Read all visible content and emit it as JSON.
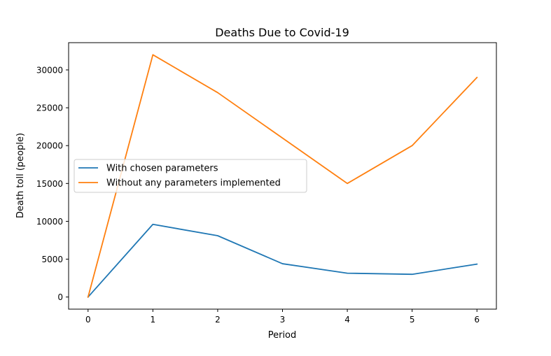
{
  "chart_data": {
    "type": "line",
    "title": "Deaths Due to Covid-19",
    "xlabel": "Period",
    "ylabel": "Death toll (people)",
    "x": [
      0,
      1,
      2,
      3,
      4,
      5,
      6
    ],
    "xlim": [
      -0.3,
      6.3
    ],
    "ylim": [
      -1600,
      33600
    ],
    "xticks": [
      0,
      1,
      2,
      3,
      4,
      5,
      6
    ],
    "yticks": [
      0,
      5000,
      10000,
      15000,
      20000,
      25000,
      30000
    ],
    "grid": false,
    "legend_position": "center-left",
    "series": [
      {
        "name": "With chosen parameters",
        "color": "#1f77b4",
        "values": [
          0,
          9600,
          8100,
          4400,
          3150,
          3000,
          4350
        ]
      },
      {
        "name": "Without any parameters implemented",
        "color": "#ff7f0e",
        "values": [
          0,
          32000,
          27000,
          21000,
          15000,
          20000,
          29000
        ]
      }
    ]
  }
}
